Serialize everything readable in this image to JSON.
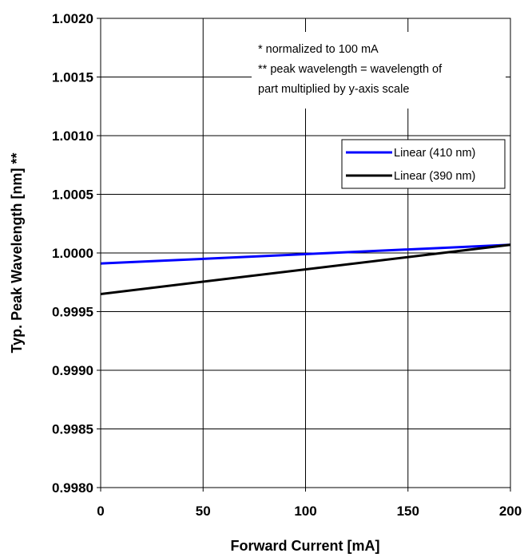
{
  "chart_data": {
    "type": "line",
    "xlabel": "Forward Current [mA]",
    "ylabel": "Typ. Peak Wavelength [nm] **",
    "xlim": [
      0,
      200
    ],
    "ylim": [
      0.998,
      1.002
    ],
    "x_ticks": [
      "0",
      "50",
      "100",
      "150",
      "200"
    ],
    "y_ticks": [
      "0.9980",
      "0.9985",
      "0.9990",
      "0.9995",
      "1.0000",
      "1.0005",
      "1.0010",
      "1.0015",
      "1.0020"
    ],
    "grid": true,
    "legend_position": "right",
    "notes": [
      "* normalized to 100 mA",
      "** peak wavelength = wavelength of",
      "part multiplied by y-axis scale"
    ],
    "series": [
      {
        "name": "Linear (410 nm)",
        "color": "#0000ff",
        "x": [
          0,
          200
        ],
        "y": [
          0.99991,
          1.00007
        ]
      },
      {
        "name": "Linear (390 nm)",
        "color": "#000000",
        "x": [
          0,
          200
        ],
        "y": [
          0.99965,
          1.00007
        ]
      }
    ]
  }
}
